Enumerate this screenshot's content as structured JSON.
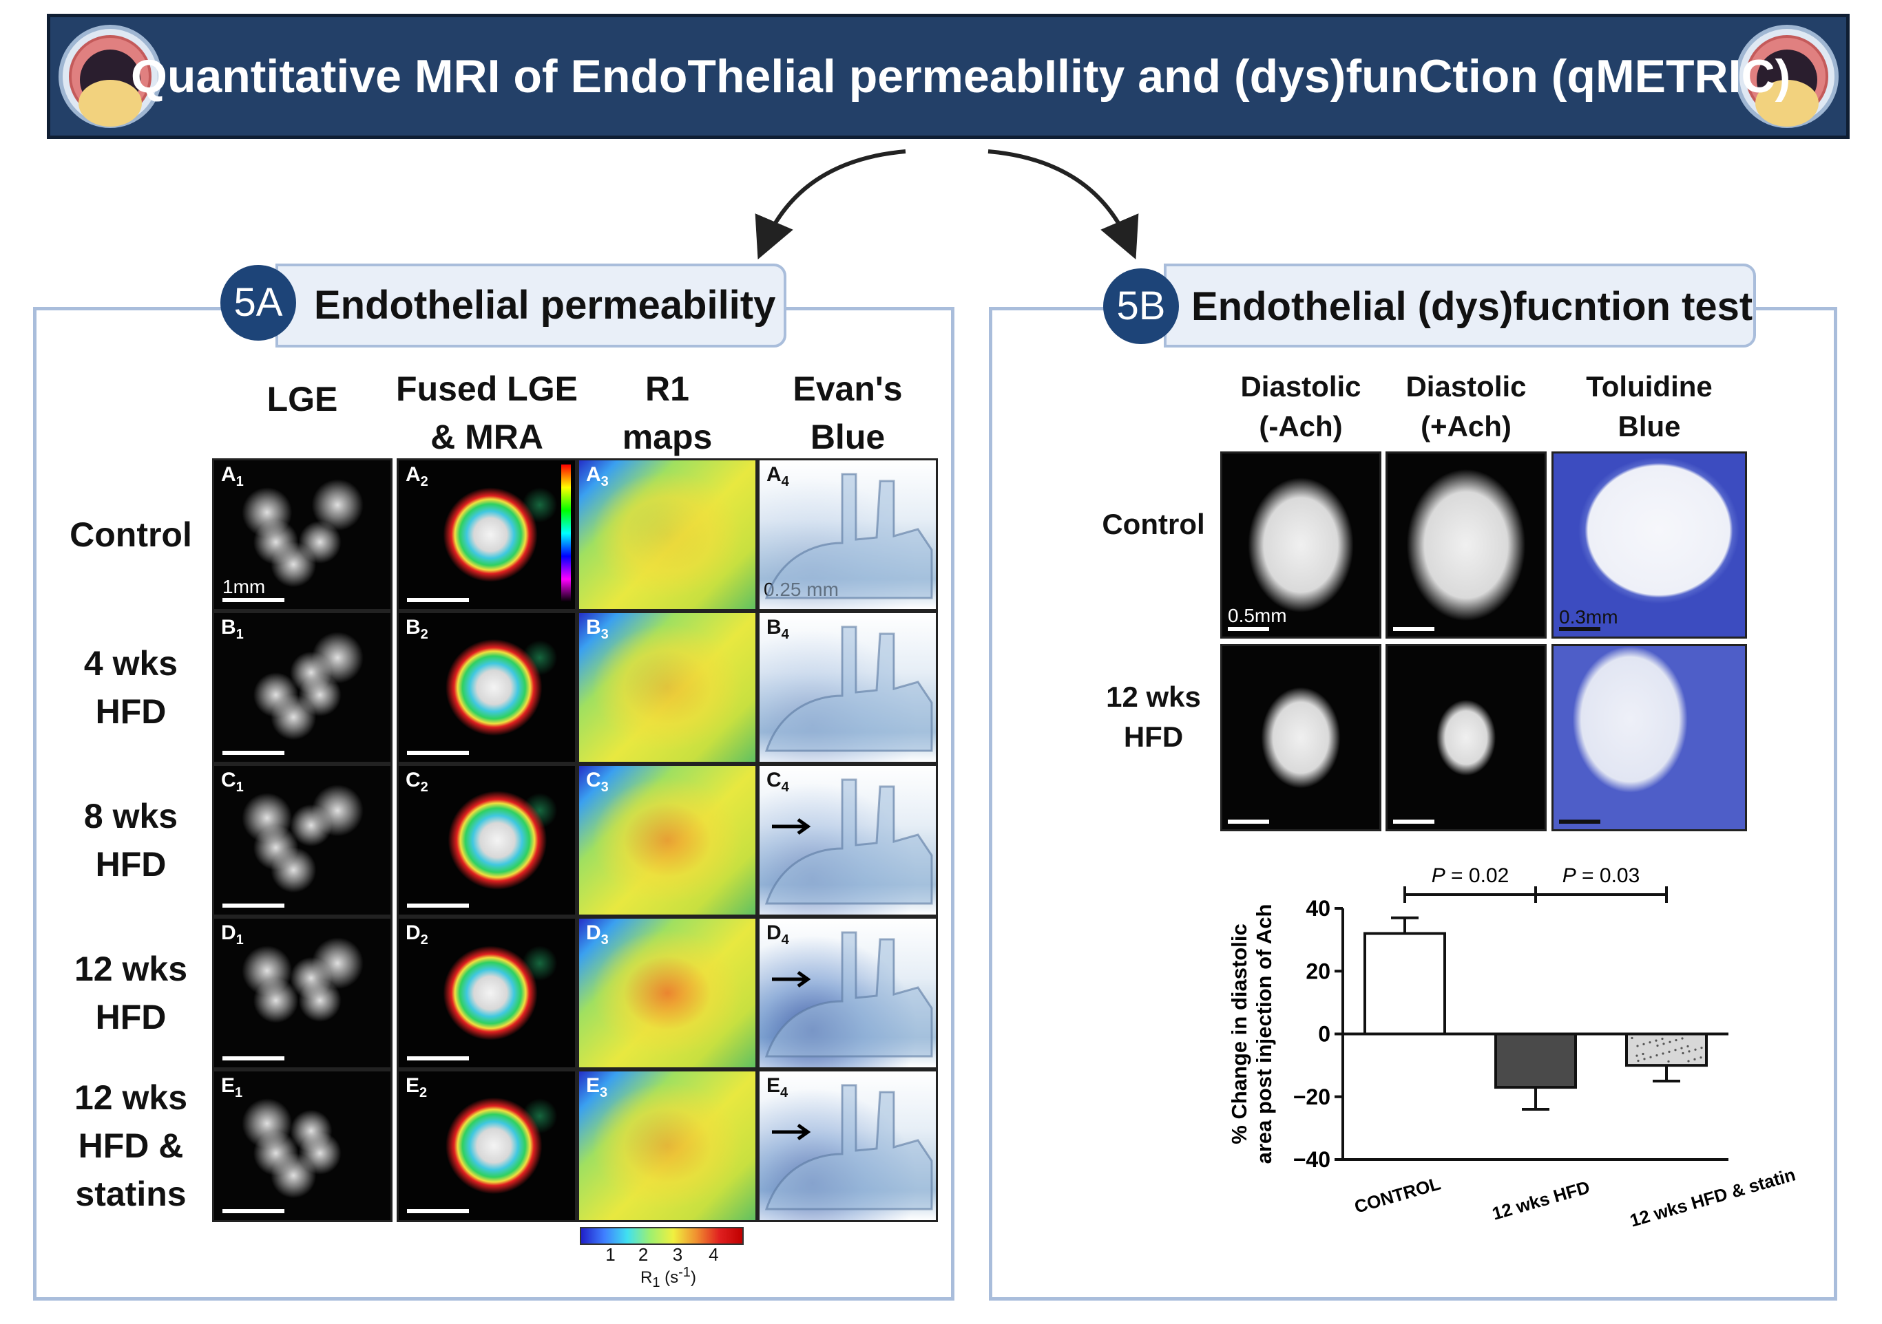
{
  "banner": {
    "title": "Quantitative MRI of EndoThelial permeabIlity and (dys)funCtion (qMETRIC)"
  },
  "panel_a": {
    "badge": "5A",
    "title": "Endothelial permeability",
    "column_headers": [
      "LGE",
      "Fused LGE\n& MRA",
      "R1\nmaps",
      "Evan's\nBlue"
    ],
    "row_labels": [
      "Control",
      "4 wks\nHFD",
      "8 wks\nHFD",
      "12 wks\nHFD",
      "12 wks\nHFD &\nstatins"
    ],
    "cell_labels": [
      [
        "A",
        "1",
        "A",
        "2",
        "A",
        "3",
        "A",
        "4"
      ],
      [
        "B",
        "1",
        "B",
        "2",
        "B",
        "3",
        "B",
        "4"
      ],
      [
        "C",
        "1",
        "C",
        "2",
        "C",
        "3",
        "C",
        "4"
      ],
      [
        "D",
        "1",
        "D",
        "2",
        "D",
        "3",
        "D",
        "4"
      ],
      [
        "E",
        "1",
        "E",
        "2",
        "E",
        "3",
        "E",
        "4"
      ]
    ],
    "scale_lge": "1mm",
    "scale_evans": "0.25 mm",
    "colorbar": {
      "ticks": [
        "1",
        "2",
        "3",
        "4"
      ],
      "label": "R",
      "label_sub": "1",
      "label_unit": " (s",
      "label_sup": "-1",
      "label_close": ")"
    }
  },
  "panel_b": {
    "badge": "5B",
    "title": "Endothelial (dys)fucntion test",
    "column_headers": [
      "Diastolic\n(-Ach)",
      "Diastolic\n(+Ach)",
      "Toluidine\nBlue"
    ],
    "row_labels": [
      "Control",
      "12 wks\nHFD"
    ],
    "scale_mri": "0.5mm",
    "scale_tb": "0.3mm"
  },
  "chart_data": {
    "type": "bar",
    "categories": [
      "CONTROL",
      "12 wks HFD",
      "12 wks HFD & statin"
    ],
    "values": [
      32,
      -17,
      -10
    ],
    "errors": [
      5,
      7,
      5
    ],
    "ylabel": "% Change in diastolic\narea post injection of Ach",
    "ylim": [
      -40,
      40
    ],
    "yticks": [
      "40",
      "20",
      "0",
      "−20",
      "−40"
    ],
    "annotations": [
      {
        "text_p": "P",
        "text_value": " = 0.02",
        "from": 0,
        "to": 1
      },
      {
        "text_p": "P",
        "text_value": " = 0.03",
        "from": 1,
        "to": 2
      }
    ],
    "bar_fills": [
      "#ffffff",
      "#4a4a4a",
      "#d8d8d8"
    ]
  },
  "colors": {
    "banner_bg": "#234068",
    "panel_border": "#a9bddb",
    "badge_bg": "#1d4478"
  }
}
